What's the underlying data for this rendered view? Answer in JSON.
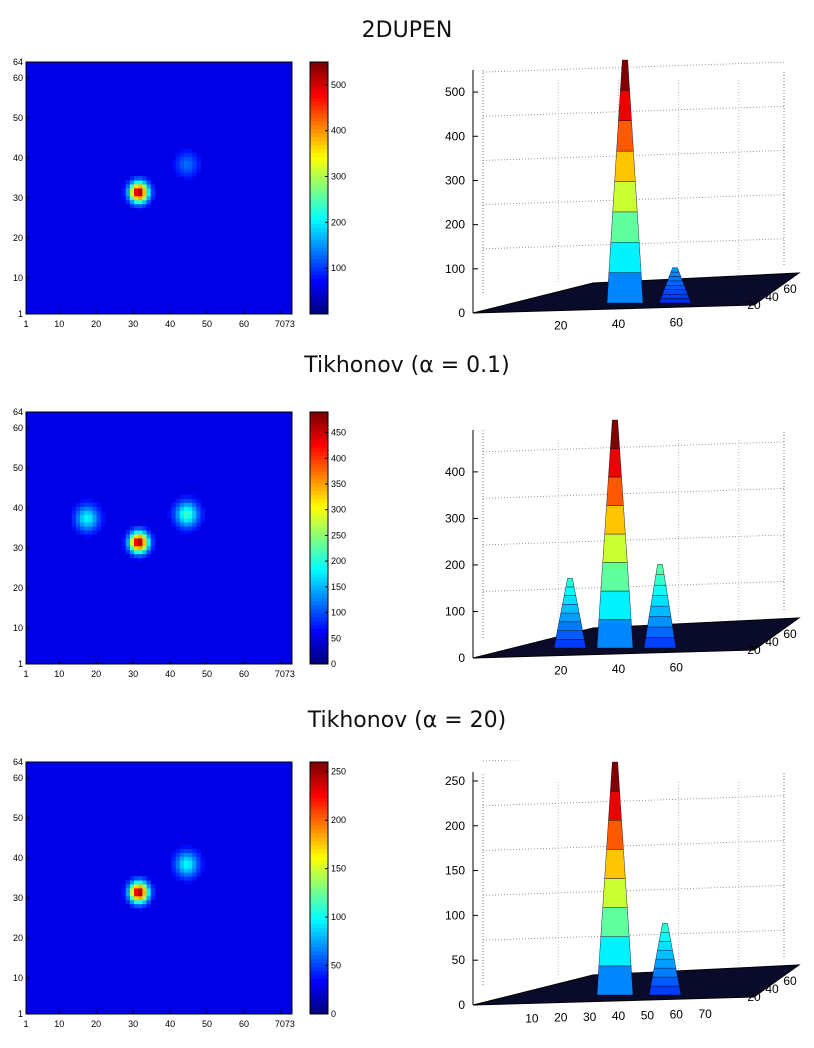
{
  "page": {
    "background": "#ffffff"
  },
  "chart_data": [
    {
      "type": "heatmap",
      "title": "2DUPEN",
      "x_ticks": [
        "1",
        "10",
        "20",
        "30",
        "40",
        "50",
        "60",
        "7073"
      ],
      "y_ticks": [
        "1",
        "10",
        "20",
        "30",
        "40",
        "50",
        "60",
        "64"
      ],
      "colorbar": {
        "ticks": [
          "100",
          "200",
          "300",
          "400",
          "500"
        ],
        "max": 550,
        "colormap": "jet"
      },
      "peaks": [
        {
          "x": 31,
          "y": 31,
          "value": 550
        },
        {
          "x": 44,
          "y": 38,
          "value": 80
        }
      ],
      "surface": {
        "x_ticks": [
          "20",
          "40",
          "60"
        ],
        "y_ticks": [
          "20",
          "40",
          "60"
        ],
        "z_ticks": [
          "0",
          "100",
          "200",
          "300",
          "400",
          "500"
        ],
        "zlim": [
          0,
          550
        ]
      }
    },
    {
      "type": "heatmap",
      "title": "Tikhonov (α = 0.1)",
      "x_ticks": [
        "1",
        "10",
        "20",
        "30",
        "40",
        "50",
        "60",
        "7073"
      ],
      "y_ticks": [
        "1",
        "10",
        "20",
        "30",
        "40",
        "50",
        "60",
        "64"
      ],
      "colorbar": {
        "ticks": [
          "0",
          "50",
          "100",
          "150",
          "200",
          "250",
          "300",
          "350",
          "400",
          "450"
        ],
        "max": 490,
        "colormap": "jet"
      },
      "peaks": [
        {
          "x": 31,
          "y": 31,
          "value": 490
        },
        {
          "x": 44,
          "y": 38,
          "value": 180
        },
        {
          "x": 17,
          "y": 37,
          "value": 150
        }
      ],
      "surface": {
        "x_ticks": [
          "20",
          "40",
          "60"
        ],
        "y_ticks": [
          "20",
          "40",
          "60"
        ],
        "z_ticks": [
          "0",
          "100",
          "200",
          "300",
          "400"
        ],
        "zlim": [
          0,
          490
        ]
      }
    },
    {
      "type": "heatmap",
      "title": "Tikhonov (α = 20)",
      "x_ticks": [
        "1",
        "10",
        "20",
        "30",
        "40",
        "50",
        "60",
        "7073"
      ],
      "y_ticks": [
        "1",
        "10",
        "20",
        "30",
        "40",
        "50",
        "60",
        "64"
      ],
      "colorbar": {
        "ticks": [
          "0",
          "50",
          "100",
          "150",
          "200",
          "250"
        ],
        "max": 260,
        "colormap": "jet"
      },
      "peaks": [
        {
          "x": 31,
          "y": 31,
          "value": 260
        },
        {
          "x": 44,
          "y": 38,
          "value": 80
        }
      ],
      "surface": {
        "x_ticks": [
          "10",
          "20",
          "30",
          "40",
          "50",
          "60",
          "70"
        ],
        "y_ticks": [
          "20",
          "40",
          "60"
        ],
        "z_ticks": [
          "0",
          "50",
          "100",
          "150",
          "200",
          "250"
        ],
        "zlim": [
          0,
          260
        ]
      }
    }
  ]
}
